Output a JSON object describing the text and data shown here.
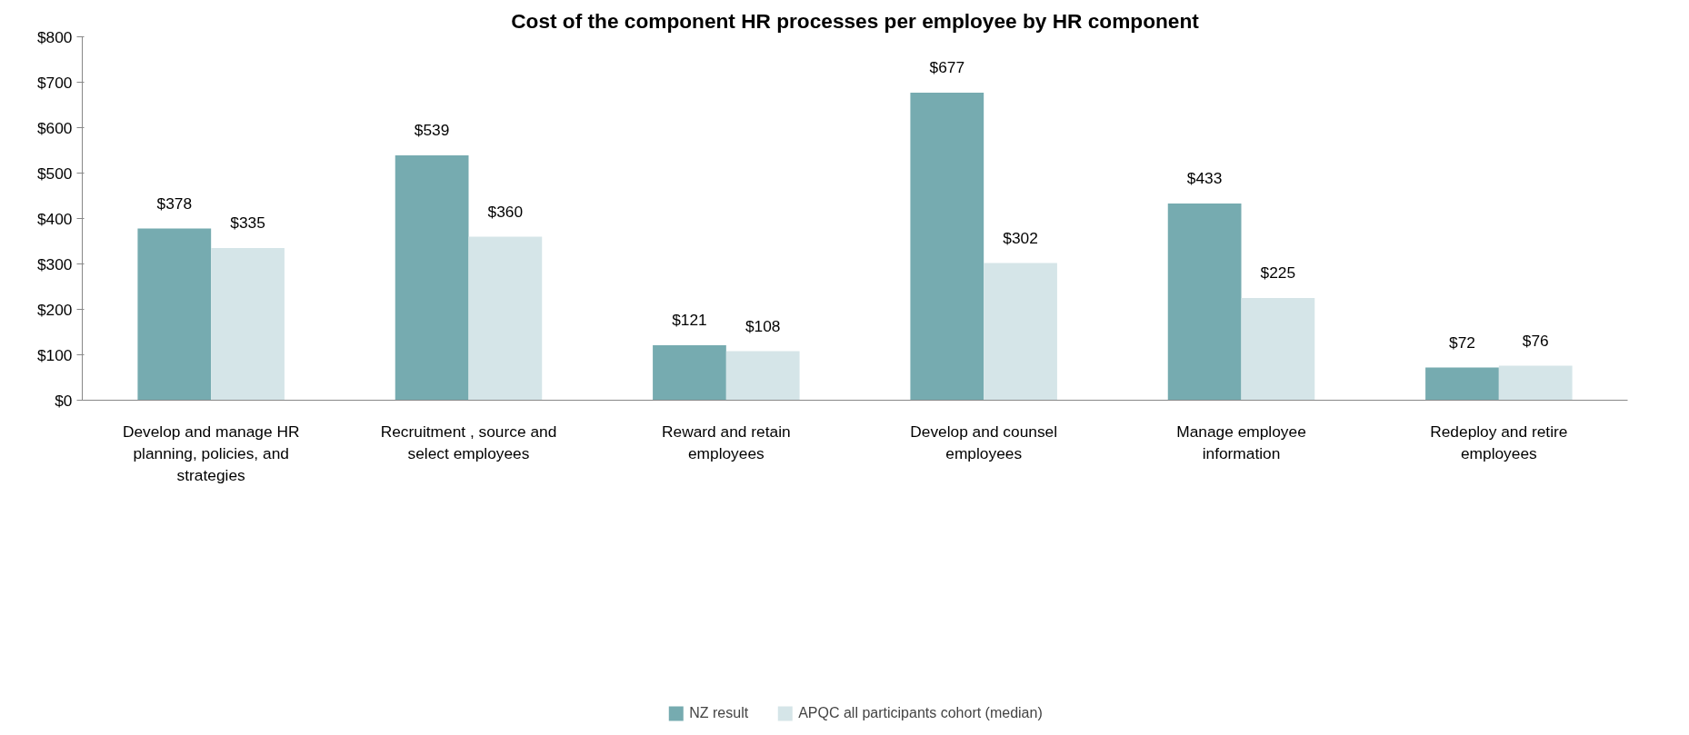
{
  "chart_data": {
    "type": "bar",
    "title": "Cost of the component HR processes per employee by HR component",
    "categories": [
      "Develop and manage HR planning, policies, and strategies",
      "Recruitment , source and select employees",
      "Reward and retain employees",
      "Develop and counsel employees",
      "Manage employee information",
      "Redeploy and retire employees"
    ],
    "series": [
      {
        "name": "NZ result",
        "color": "#76abb0",
        "values": [
          378,
          539,
          121,
          677,
          433,
          72
        ],
        "value_labels": [
          "$378",
          "$539",
          "$121",
          "$677",
          "$433",
          "$72"
        ]
      },
      {
        "name": "APQC all participants cohort (median)",
        "color": "#d5e5e8",
        "values": [
          335,
          360,
          108,
          302,
          225,
          76
        ],
        "value_labels": [
          "$335",
          "$360",
          "$108",
          "$302",
          "$225",
          "$76"
        ]
      }
    ],
    "ylim": [
      0,
      800
    ],
    "yticks": [
      {
        "value": 0,
        "label": "$0"
      },
      {
        "value": 100,
        "label": "$100"
      },
      {
        "value": 200,
        "label": "$200"
      },
      {
        "value": 300,
        "label": "$300"
      },
      {
        "value": 400,
        "label": "$400"
      },
      {
        "value": 500,
        "label": "$500"
      },
      {
        "value": 600,
        "label": "$600"
      },
      {
        "value": 700,
        "label": "$700"
      },
      {
        "value": 800,
        "label": "$800"
      }
    ],
    "grid": false,
    "legend": "bottom"
  }
}
